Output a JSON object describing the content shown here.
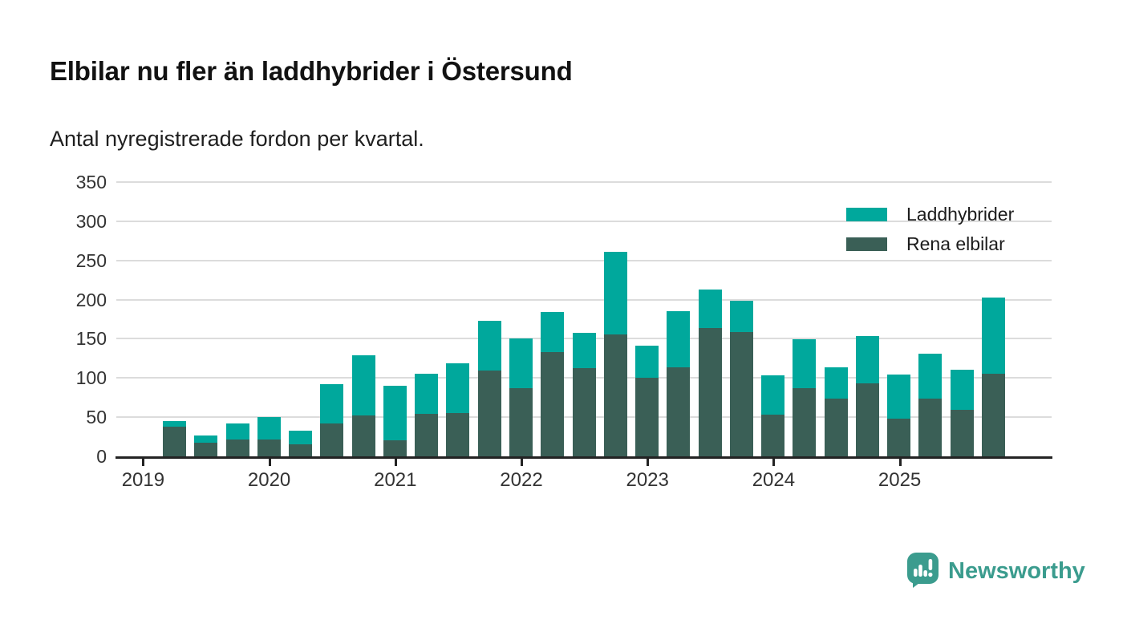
{
  "header": {
    "title": "Elbilar nu fler än laddhybrider i Östersund",
    "subtitle": "Antal nyregistrerade fordon per kvartal."
  },
  "chart_data": {
    "type": "bar",
    "stacked": true,
    "title": "Elbilar nu fler än laddhybrider i Östersund",
    "subtitle": "Antal nyregistrerade fordon per kvartal.",
    "x": [
      "2019Q2",
      "2019Q3",
      "2019Q4",
      "2020Q1",
      "2020Q2",
      "2020Q3",
      "2020Q4",
      "2021Q1",
      "2021Q2",
      "2021Q3",
      "2021Q4",
      "2022Q1",
      "2022Q2",
      "2022Q3",
      "2022Q4",
      "2023Q1",
      "2023Q2",
      "2023Q3",
      "2023Q4",
      "2024Q1",
      "2024Q2",
      "2024Q3",
      "2024Q4",
      "2025Q1",
      "2025Q2",
      "2025Q3",
      "2025Q4"
    ],
    "series": [
      {
        "name": "Laddhybrider",
        "color": "#00A89C",
        "stack_position": "top",
        "values": [
          7,
          10,
          21,
          28,
          18,
          50,
          77,
          70,
          51,
          64,
          63,
          63,
          51,
          45,
          105,
          41,
          71,
          49,
          40,
          50,
          62,
          40,
          60,
          56,
          57,
          52,
          98
        ]
      },
      {
        "name": "Rena elbilar",
        "color": "#3A5F56",
        "stack_position": "bottom",
        "values": [
          38,
          17,
          21,
          22,
          15,
          42,
          52,
          20,
          54,
          55,
          110,
          87,
          133,
          113,
          156,
          100,
          114,
          164,
          159,
          53,
          87,
          74,
          93,
          48,
          74,
          59,
          105
        ]
      }
    ],
    "xticks": [
      "2019",
      "2020",
      "2021",
      "2022",
      "2023",
      "2024",
      "2025"
    ],
    "yticks": [
      0,
      50,
      100,
      150,
      200,
      250,
      300,
      350
    ],
    "ylim": [
      0,
      350
    ],
    "grid": true,
    "legend_position": "top-right"
  },
  "footer": {
    "brand": "Newsworthy",
    "logo_icon": "bar-chart-speech-bubble-icon",
    "logo_color": "#3B9C8E"
  },
  "colors": {
    "laddhybrider": "#00A89C",
    "rena_elbilar": "#3A5F56",
    "gridline": "#dcdcdc",
    "axis": "#232323",
    "text": "#333333"
  }
}
